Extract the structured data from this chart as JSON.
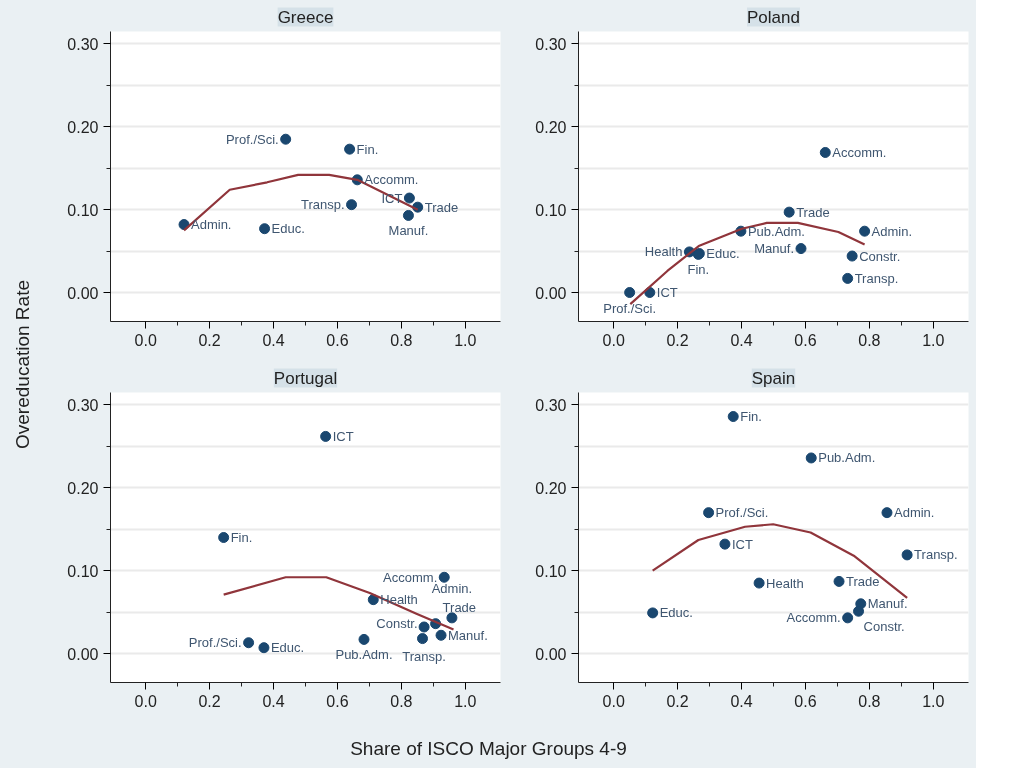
{
  "chart_data": [
    {
      "type": "scatter",
      "title": "Greece",
      "ylabel": "Overeducation Rate",
      "xlim": [
        -0.11,
        1.11
      ],
      "ylim": [
        -0.035,
        0.315
      ],
      "xticks": [
        {
          "value": 0,
          "label": "0.0"
        },
        {
          "value": 0.1,
          "label": null
        },
        {
          "value": 0.2,
          "label": "0.2"
        },
        {
          "value": 0.3,
          "label": null
        },
        {
          "value": 0.4,
          "label": "0.4"
        },
        {
          "value": 0.5,
          "label": null
        },
        {
          "value": 0.6,
          "label": "0.6"
        },
        {
          "value": 0.7,
          "label": null
        },
        {
          "value": 0.8,
          "label": "0.8"
        },
        {
          "value": 0.9,
          "label": null
        },
        {
          "value": 1,
          "label": "1.0"
        }
      ],
      "yticks": [
        {
          "value": 0,
          "label": "0.00"
        },
        {
          "value": 0.05,
          "label": null
        },
        {
          "value": 0.1,
          "label": "0.10"
        },
        {
          "value": 0.15,
          "label": null
        },
        {
          "value": 0.2,
          "label": "0.20"
        },
        {
          "value": 0.25,
          "label": null
        },
        {
          "value": 0.3,
          "label": "0.30"
        }
      ],
      "grid": "y",
      "series": [
        {
          "marker": "circle",
          "color": "#1a476f",
          "x": [
            0.12,
            0.438,
            0.372,
            0.638,
            0.662,
            0.644,
            0.825,
            0.851,
            0.822
          ],
          "values": [
            0.082,
            0.185,
            0.077,
            0.173,
            0.136,
            0.106,
            0.114,
            0.103,
            0.093
          ]
        },
        {
          "type": "line",
          "color": "#90353b",
          "x": [
            0.12,
            0.263,
            0.38,
            0.477,
            0.574,
            0.662,
            0.851
          ],
          "values": [
            0.075,
            0.124,
            0.133,
            0.142,
            0.142,
            0.136,
            0.1
          ]
        }
      ],
      "annotations": [
        {
          "text": "Admin.",
          "x": 0.12,
          "y": 0.082
        },
        {
          "text": "Prof./Sci.",
          "x": 0.438,
          "y": 0.185
        },
        {
          "text": "Educ.",
          "x": 0.372,
          "y": 0.077
        },
        {
          "text": "Fin.",
          "x": 0.638,
          "y": 0.173
        },
        {
          "text": "Accomm.",
          "x": 0.662,
          "y": 0.136
        },
        {
          "text": "Transp.",
          "x": 0.644,
          "y": 0.106
        },
        {
          "text": "ICT",
          "x": 0.825,
          "y": 0.114
        },
        {
          "text": "Trade",
          "x": 0.851,
          "y": 0.103
        },
        {
          "text": "Manuf.",
          "x": 0.822,
          "y": 0.093
        }
      ]
    },
    {
      "type": "scatter",
      "title": "Poland",
      "xlim": [
        -0.11,
        1.11
      ],
      "ylim": [
        -0.035,
        0.315
      ],
      "xticks": [
        {
          "value": 0,
          "label": "0.0"
        },
        {
          "value": 0.1,
          "label": null
        },
        {
          "value": 0.2,
          "label": "0.2"
        },
        {
          "value": 0.3,
          "label": null
        },
        {
          "value": 0.4,
          "label": "0.4"
        },
        {
          "value": 0.5,
          "label": null
        },
        {
          "value": 0.6,
          "label": "0.6"
        },
        {
          "value": 0.7,
          "label": null
        },
        {
          "value": 0.8,
          "label": "0.8"
        },
        {
          "value": 0.9,
          "label": null
        },
        {
          "value": 1,
          "label": "1.0"
        }
      ],
      "yticks": [
        {
          "value": 0,
          "label": "0.00"
        },
        {
          "value": 0.05,
          "label": null
        },
        {
          "value": 0.1,
          "label": "0.10"
        },
        {
          "value": 0.15,
          "label": null
        },
        {
          "value": 0.2,
          "label": "0.20"
        },
        {
          "value": 0.25,
          "label": null
        },
        {
          "value": 0.3,
          "label": "0.30"
        }
      ],
      "grid": "y",
      "series": [
        {
          "marker": "circle",
          "color": "#1a476f",
          "x": [
            0.05,
            0.113,
            0.237,
            0.268,
            0.265,
            0.398,
            0.549,
            0.586,
            0.662,
            0.785,
            0.746,
            0.732
          ],
          "values": [
            0.0,
            0.0,
            0.049,
            0.047,
            0.046,
            0.074,
            0.097,
            0.053,
            0.169,
            0.074,
            0.044,
            0.017
          ]
        },
        {
          "type": "line",
          "color": "#90353b",
          "x": [
            0.052,
            0.168,
            0.266,
            0.401,
            0.479,
            0.576,
            0.703,
            0.785
          ],
          "values": [
            -0.014,
            0.026,
            0.056,
            0.077,
            0.084,
            0.084,
            0.073,
            0.058
          ]
        }
      ],
      "annotations": [
        {
          "text": "Prof./Sci.",
          "x": 0.05,
          "y": 0.0
        },
        {
          "text": "ICT",
          "x": 0.113,
          "y": 0.0
        },
        {
          "text": "Health",
          "x": 0.237,
          "y": 0.049
        },
        {
          "text": "Educ.",
          "x": 0.268,
          "y": 0.047
        },
        {
          "text": "Fin.",
          "x": 0.265,
          "y": 0.046
        },
        {
          "text": "Pub.Adm.",
          "x": 0.398,
          "y": 0.074
        },
        {
          "text": "Trade",
          "x": 0.549,
          "y": 0.097
        },
        {
          "text": "Manuf.",
          "x": 0.586,
          "y": 0.053
        },
        {
          "text": "Accomm.",
          "x": 0.662,
          "y": 0.169
        },
        {
          "text": "Admin.",
          "x": 0.785,
          "y": 0.074
        },
        {
          "text": "Constr.",
          "x": 0.746,
          "y": 0.044
        },
        {
          "text": "Transp.",
          "x": 0.732,
          "y": 0.017
        }
      ]
    },
    {
      "type": "scatter",
      "title": "Portugal",
      "xlabel": "Share of ISCO Major Groups 4-9",
      "xlim": [
        -0.11,
        1.11
      ],
      "ylim": [
        -0.035,
        0.315
      ],
      "xticks": [
        {
          "value": 0,
          "label": "0.0"
        },
        {
          "value": 0.1,
          "label": null
        },
        {
          "value": 0.2,
          "label": "0.2"
        },
        {
          "value": 0.3,
          "label": null
        },
        {
          "value": 0.4,
          "label": "0.4"
        },
        {
          "value": 0.5,
          "label": null
        },
        {
          "value": 0.6,
          "label": "0.6"
        },
        {
          "value": 0.7,
          "label": null
        },
        {
          "value": 0.8,
          "label": "0.8"
        },
        {
          "value": 0.9,
          "label": null
        },
        {
          "value": 1,
          "label": "1.0"
        }
      ],
      "yticks": [
        {
          "value": 0,
          "label": "0.00"
        },
        {
          "value": 0.05,
          "label": null
        },
        {
          "value": 0.1,
          "label": "0.10"
        },
        {
          "value": 0.15,
          "label": null
        },
        {
          "value": 0.2,
          "label": "0.20"
        },
        {
          "value": 0.25,
          "label": null
        },
        {
          "value": 0.3,
          "label": "0.30"
        }
      ],
      "grid": "y",
      "series": [
        {
          "marker": "circle",
          "color": "#1a476f",
          "x": [
            0.563,
            0.244,
            0.322,
            0.37,
            0.683,
            0.712,
            0.934,
            0.871,
            0.866,
            0.907,
            0.924,
            0.958
          ],
          "values": [
            0.262,
            0.14,
            0.013,
            0.007,
            0.017,
            0.065,
            0.092,
            0.032,
            0.018,
            0.036,
            0.022,
            0.043
          ]
        },
        {
          "type": "line",
          "color": "#90353b",
          "x": [
            0.244,
            0.438,
            0.565,
            0.701,
            0.847,
            0.963
          ],
          "values": [
            0.071,
            0.092,
            0.092,
            0.073,
            0.048,
            0.029
          ]
        }
      ],
      "annotations": [
        {
          "text": "ICT",
          "x": 0.563,
          "y": 0.262
        },
        {
          "text": "Fin.",
          "x": 0.244,
          "y": 0.14
        },
        {
          "text": "Prof./Sci.",
          "x": 0.322,
          "y": 0.013
        },
        {
          "text": "Educ.",
          "x": 0.37,
          "y": 0.007
        },
        {
          "text": "Pub.Adm.",
          "x": 0.683,
          "y": 0.017
        },
        {
          "text": "Health",
          "x": 0.712,
          "y": 0.065
        },
        {
          "text": "Accomm.",
          "x": 0.934,
          "y": 0.092
        },
        {
          "text": "Transp.",
          "x": 0.871,
          "y": 0.032
        },
        {
          "text": "Constr.",
          "x": 0.866,
          "y": 0.018
        },
        {
          "text": "Trade",
          "x": 0.907,
          "y": 0.036
        },
        {
          "text": "Manuf.",
          "x": 0.924,
          "y": 0.022
        },
        {
          "text": "Admin.",
          "x": 0.958,
          "y": 0.043
        }
      ]
    },
    {
      "type": "scatter",
      "title": "Spain",
      "xlim": [
        -0.11,
        1.11
      ],
      "ylim": [
        -0.035,
        0.315
      ],
      "xticks": [
        {
          "value": 0,
          "label": "0.0"
        },
        {
          "value": 0.1,
          "label": null
        },
        {
          "value": 0.2,
          "label": "0.2"
        },
        {
          "value": 0.3,
          "label": null
        },
        {
          "value": 0.4,
          "label": "0.4"
        },
        {
          "value": 0.5,
          "label": null
        },
        {
          "value": 0.6,
          "label": "0.6"
        },
        {
          "value": 0.7,
          "label": null
        },
        {
          "value": 0.8,
          "label": "0.8"
        },
        {
          "value": 0.9,
          "label": null
        },
        {
          "value": 1,
          "label": "1.0"
        }
      ],
      "yticks": [
        {
          "value": 0,
          "label": "0.00"
        },
        {
          "value": 0.05,
          "label": null
        },
        {
          "value": 0.1,
          "label": "0.10"
        },
        {
          "value": 0.15,
          "label": null
        },
        {
          "value": 0.2,
          "label": "0.20"
        },
        {
          "value": 0.25,
          "label": null
        },
        {
          "value": 0.3,
          "label": "0.30"
        }
      ],
      "grid": "y",
      "series": [
        {
          "marker": "circle",
          "color": "#1a476f",
          "x": [
            0.374,
            0.618,
            0.297,
            0.855,
            0.348,
            0.918,
            0.455,
            0.705,
            0.122,
            0.732,
            0.773,
            0.766
          ],
          "values": [
            0.286,
            0.236,
            0.17,
            0.17,
            0.132,
            0.119,
            0.085,
            0.087,
            0.049,
            0.043,
            0.06,
            0.051
          ]
        },
        {
          "type": "line",
          "color": "#90353b",
          "x": [
            0.122,
            0.265,
            0.411,
            0.499,
            0.616,
            0.751,
            0.918
          ],
          "values": [
            0.1,
            0.137,
            0.153,
            0.156,
            0.146,
            0.118,
            0.067
          ]
        }
      ],
      "annotations": [
        {
          "text": "Fin.",
          "x": 0.374,
          "y": 0.286
        },
        {
          "text": "Pub.Adm.",
          "x": 0.618,
          "y": 0.236
        },
        {
          "text": "Prof./Sci.",
          "x": 0.297,
          "y": 0.17
        },
        {
          "text": "Admin.",
          "x": 0.855,
          "y": 0.17
        },
        {
          "text": "ICT",
          "x": 0.348,
          "y": 0.132
        },
        {
          "text": "Transp.",
          "x": 0.918,
          "y": 0.119
        },
        {
          "text": "Health",
          "x": 0.455,
          "y": 0.085
        },
        {
          "text": "Trade",
          "x": 0.705,
          "y": 0.087
        },
        {
          "text": "Educ.",
          "x": 0.122,
          "y": 0.049
        },
        {
          "text": "Accomm.",
          "x": 0.732,
          "y": 0.043
        },
        {
          "text": "Manuf.",
          "x": 0.773,
          "y": 0.06
        },
        {
          "text": "Constr.",
          "x": 0.766,
          "y": 0.051
        }
      ]
    }
  ]
}
